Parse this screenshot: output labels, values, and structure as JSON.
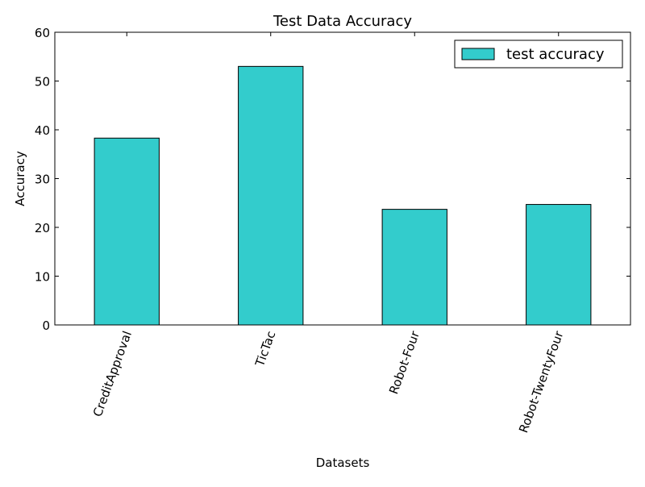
{
  "chart_data": {
    "type": "bar",
    "title": "Test Data Accuracy",
    "xlabel": "Datasets",
    "ylabel": "Accuracy",
    "categories": [
      "CreditApproval",
      "TicTac",
      "Robot-Four",
      "Robot-TwentyFour"
    ],
    "series": [
      {
        "name": "test accuracy",
        "values": [
          38.3,
          53.0,
          23.7,
          24.7
        ],
        "color": "#33cccc"
      }
    ],
    "ylim": [
      0,
      60
    ],
    "yticks": [
      0,
      10,
      20,
      30,
      40,
      50,
      60
    ],
    "grid": false,
    "legend_position": "top-right",
    "xtick_rotation": "70-degree"
  }
}
